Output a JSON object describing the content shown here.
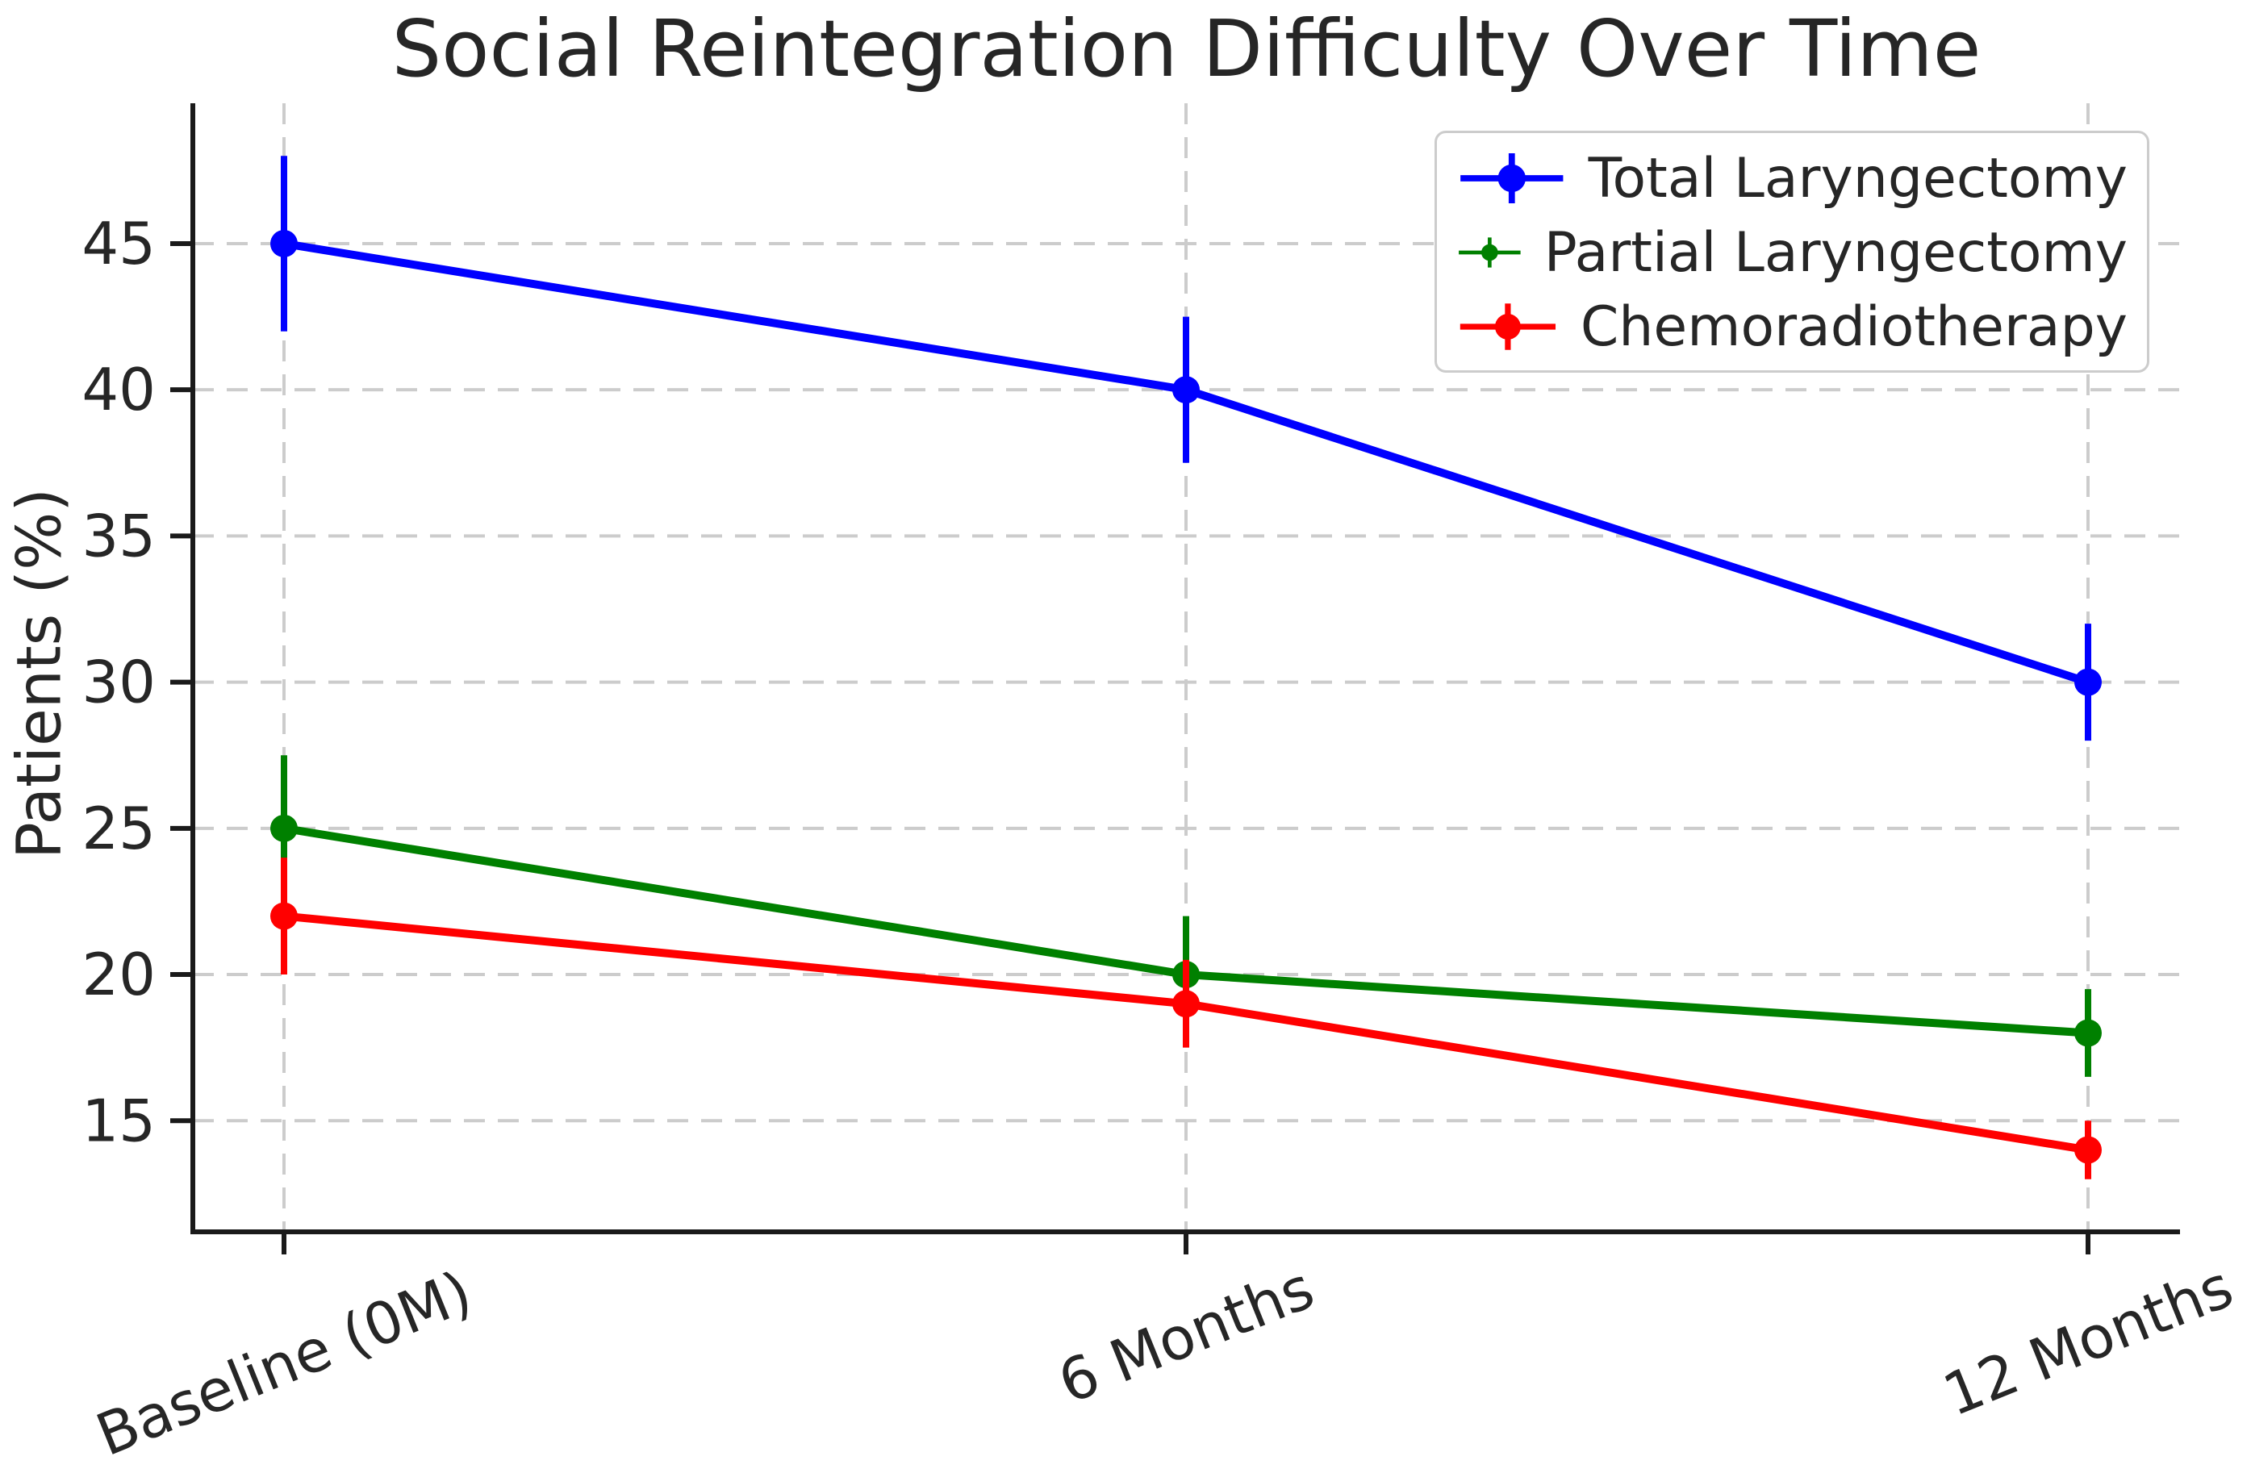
{
  "figure": {
    "background": "#ffffff",
    "text_color": "#262626",
    "spine_color": "#1a1a1a",
    "grid_color": "#cccccc"
  },
  "chart_data": {
    "type": "line",
    "title": "Social Reintegration Difficulty Over Time",
    "xlabel": "",
    "ylabel": "Patients (%)",
    "categories": [
      "Baseline (0M)",
      "6 Months",
      "12 Months"
    ],
    "series": [
      {
        "name": "Total Laryngectomy",
        "color": "#0000ff",
        "values": [
          45,
          40,
          30
        ],
        "errors": [
          3,
          2.5,
          2
        ]
      },
      {
        "name": "Partial Laryngectomy",
        "color": "#008000",
        "values": [
          25,
          20,
          18
        ],
        "errors": [
          2.5,
          2,
          1.5
        ]
      },
      {
        "name": "Chemoradiotherapy",
        "color": "#ff0000",
        "values": [
          22,
          19,
          14
        ],
        "errors": [
          2,
          1.5,
          1
        ]
      }
    ],
    "yticks": [
      15,
      20,
      25,
      30,
      35,
      40,
      45
    ],
    "ylim": [
      11.2,
      49.8
    ],
    "grid": true,
    "grid_style": "dashed",
    "legend_position": "upper right",
    "x_tick_rotation": 22,
    "marker": "circle",
    "error_caps": false
  }
}
